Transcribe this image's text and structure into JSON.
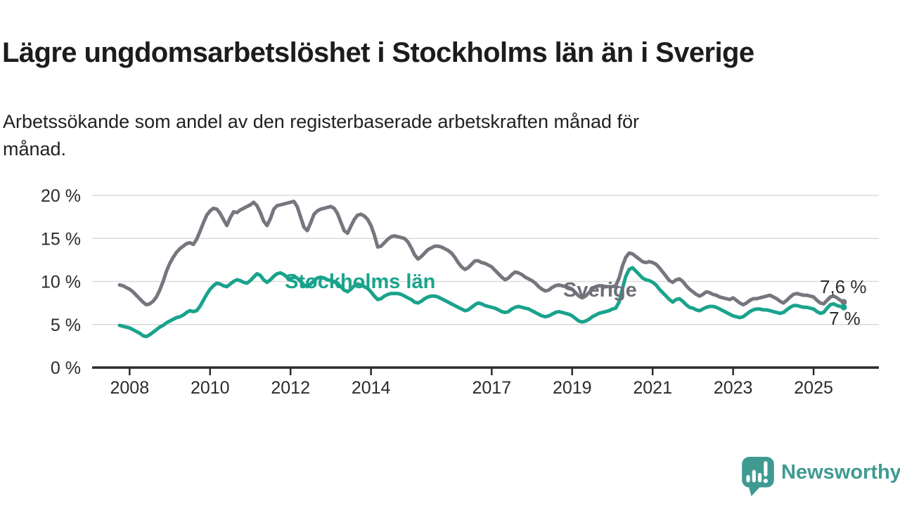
{
  "header": {
    "title": "Lägre ungdomsarbetslöshet i Stockholms län än i Sverige",
    "subtitle": "Arbetssökande som andel av den registerbaserade arbetskraften månad för månad."
  },
  "chart_data": {
    "type": "line",
    "title": "Lägre ungdomsarbetslöshet i Stockholms län än i Sverige",
    "subtitle": "Arbetssökande som andel av den registerbaserade arbetskraften månad för månad.",
    "x_unit": "month",
    "x_range": [
      "2007-10",
      "2025-10"
    ],
    "x_tick_labels": [
      "2008",
      "2010",
      "2012",
      "2014",
      "2017",
      "2019",
      "2021",
      "2023",
      "2025"
    ],
    "y_tick_labels": [
      "0 %",
      "5 %",
      "10 %",
      "15 %",
      "20 %"
    ],
    "ylim": [
      0,
      21
    ],
    "grid": "horizontal",
    "legend": "inline-labels",
    "series": [
      {
        "name": "Sverige",
        "color": "#76767e",
        "end_label": "7,6 %",
        "end_value": 7.6,
        "values": [
          9.6,
          9.5,
          9.3,
          9.1,
          8.8,
          8.4,
          8.0,
          7.6,
          7.3,
          7.4,
          7.7,
          8.2,
          9.0,
          10.0,
          11.2,
          12.1,
          12.8,
          13.4,
          13.8,
          14.1,
          14.4,
          14.5,
          14.3,
          14.9,
          15.8,
          16.8,
          17.7,
          18.2,
          18.5,
          18.4,
          17.9,
          17.2,
          16.5,
          17.4,
          18.1,
          18.0,
          18.3,
          18.5,
          18.7,
          18.9,
          19.2,
          18.8,
          18.0,
          17.0,
          16.5,
          17.3,
          18.4,
          18.8,
          18.9,
          19.0,
          19.1,
          19.2,
          19.3,
          18.7,
          17.5,
          16.3,
          15.9,
          16.8,
          17.8,
          18.2,
          18.4,
          18.5,
          18.6,
          18.7,
          18.5,
          17.9,
          16.9,
          15.9,
          15.6,
          16.4,
          17.2,
          17.7,
          17.8,
          17.6,
          17.2,
          16.5,
          15.4,
          14.0,
          14.1,
          14.5,
          14.9,
          15.2,
          15.3,
          15.2,
          15.1,
          15.0,
          14.6,
          13.9,
          13.1,
          12.6,
          12.9,
          13.3,
          13.7,
          13.9,
          14.1,
          14.1,
          14.0,
          13.8,
          13.6,
          13.3,
          12.8,
          12.2,
          11.7,
          11.4,
          11.6,
          12.0,
          12.4,
          12.4,
          12.2,
          12.1,
          11.9,
          11.7,
          11.3,
          10.9,
          10.5,
          10.2,
          10.4,
          10.8,
          11.1,
          11.0,
          10.8,
          10.5,
          10.3,
          10.1,
          9.8,
          9.4,
          9.1,
          8.9,
          9.0,
          9.3,
          9.5,
          9.6,
          9.5,
          9.4,
          9.3,
          9.1,
          8.7,
          8.3,
          8.1,
          8.3,
          8.7,
          9.1,
          9.4,
          9.5,
          9.5,
          9.4,
          9.4,
          9.4,
          9.5,
          10.4,
          11.8,
          12.8,
          13.3,
          13.2,
          12.9,
          12.6,
          12.3,
          12.2,
          12.3,
          12.2,
          12.0,
          11.6,
          11.1,
          10.6,
          10.1,
          9.9,
          10.2,
          10.3,
          10.0,
          9.5,
          9.1,
          8.8,
          8.5,
          8.3,
          8.5,
          8.8,
          8.7,
          8.5,
          8.4,
          8.2,
          8.1,
          8.0,
          7.9,
          8.1,
          7.8,
          7.5,
          7.3,
          7.5,
          7.8,
          8.0,
          8.0,
          8.1,
          8.2,
          8.3,
          8.4,
          8.2,
          8.0,
          7.7,
          7.5,
          7.8,
          8.2,
          8.5,
          8.6,
          8.5,
          8.4,
          8.4,
          8.3,
          8.2,
          7.8,
          7.5,
          7.4,
          7.8,
          8.2,
          8.3,
          8.1,
          7.8,
          7.6
        ]
      },
      {
        "name": "Stockholms län",
        "color": "#1aa38c",
        "end_label": "7 %",
        "end_value": 7.0,
        "values": [
          4.9,
          4.8,
          4.7,
          4.6,
          4.4,
          4.2,
          4.0,
          3.7,
          3.6,
          3.8,
          4.1,
          4.4,
          4.7,
          4.9,
          5.2,
          5.4,
          5.6,
          5.8,
          5.9,
          6.1,
          6.4,
          6.6,
          6.5,
          6.6,
          7.1,
          7.8,
          8.5,
          9.1,
          9.5,
          9.8,
          9.7,
          9.5,
          9.4,
          9.7,
          10.0,
          10.2,
          10.1,
          9.9,
          9.8,
          10.1,
          10.5,
          10.9,
          10.7,
          10.2,
          9.9,
          10.2,
          10.6,
          10.9,
          11.0,
          10.8,
          10.5,
          10.3,
          10.5,
          10.4,
          10.0,
          9.6,
          9.4,
          9.7,
          10.1,
          10.4,
          10.5,
          10.4,
          10.2,
          10.1,
          10.0,
          9.8,
          9.4,
          9.0,
          8.8,
          9.1,
          9.5,
          9.7,
          9.6,
          9.4,
          9.2,
          8.8,
          8.3,
          7.9,
          8.0,
          8.3,
          8.5,
          8.6,
          8.6,
          8.6,
          8.5,
          8.3,
          8.1,
          7.9,
          7.6,
          7.5,
          7.7,
          8.0,
          8.2,
          8.3,
          8.3,
          8.2,
          8.0,
          7.8,
          7.6,
          7.4,
          7.2,
          7.0,
          6.8,
          6.6,
          6.7,
          7.0,
          7.3,
          7.5,
          7.4,
          7.2,
          7.1,
          7.0,
          6.9,
          6.7,
          6.5,
          6.4,
          6.5,
          6.8,
          7.0,
          7.1,
          7.0,
          6.9,
          6.8,
          6.6,
          6.4,
          6.2,
          6.0,
          5.9,
          6.0,
          6.2,
          6.4,
          6.5,
          6.4,
          6.3,
          6.2,
          6.0,
          5.7,
          5.4,
          5.3,
          5.4,
          5.6,
          5.9,
          6.1,
          6.3,
          6.4,
          6.5,
          6.6,
          6.8,
          6.9,
          7.6,
          9.2,
          10.6,
          11.4,
          11.6,
          11.2,
          10.8,
          10.4,
          10.2,
          10.1,
          9.9,
          9.6,
          9.1,
          8.7,
          8.3,
          7.9,
          7.6,
          7.9,
          8.0,
          7.7,
          7.3,
          7.0,
          6.9,
          6.7,
          6.6,
          6.8,
          7.0,
          7.1,
          7.1,
          7.0,
          6.8,
          6.6,
          6.4,
          6.2,
          6.0,
          5.9,
          5.8,
          5.9,
          6.2,
          6.5,
          6.7,
          6.8,
          6.8,
          6.7,
          6.7,
          6.6,
          6.5,
          6.4,
          6.3,
          6.4,
          6.7,
          7.0,
          7.2,
          7.2,
          7.1,
          7.0,
          7.0,
          6.9,
          6.8,
          6.5,
          6.3,
          6.4,
          6.9,
          7.3,
          7.4,
          7.2,
          7.1,
          7.0
        ]
      }
    ]
  },
  "footer": {
    "brand": "Newsworthy",
    "brand_color": "#3f9a91",
    "logo_icon": "speech-bubble-bar-chart-exclamation"
  }
}
